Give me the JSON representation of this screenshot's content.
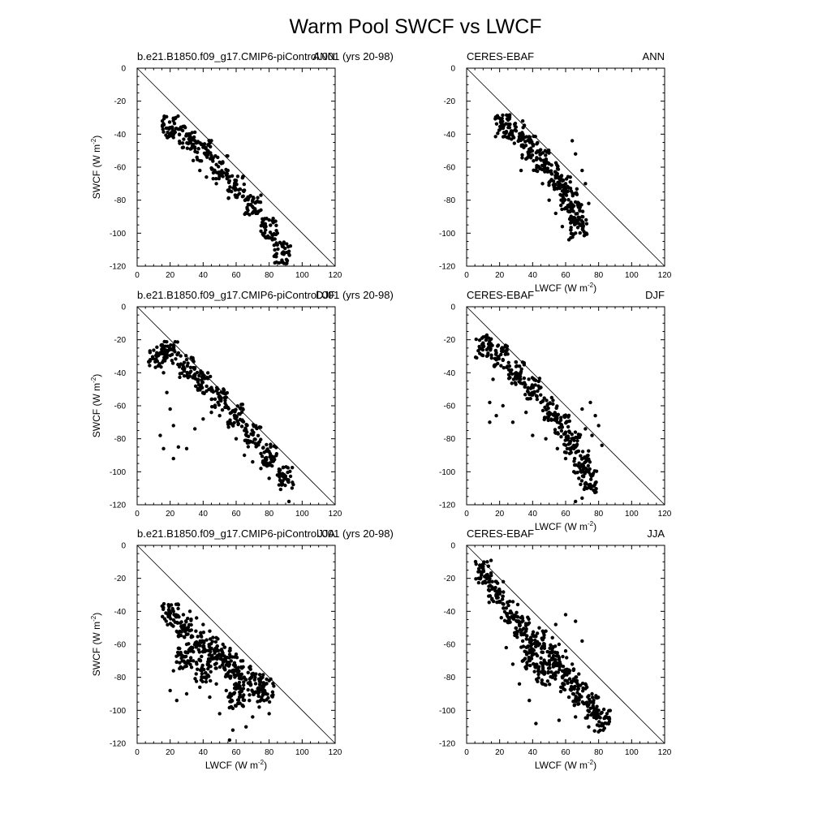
{
  "figure": {
    "title": "Warm Pool SWCF vs LWCF",
    "x_axis_title": "LWCF (W m",
    "y_axis_title": "SWCF (W m",
    "unit_superscript": "-2",
    "unit_close": ")"
  },
  "chart_data": [
    {
      "type": "scatter",
      "left_label": "b.e21.B1850.f09_g17.CMIP6-piControl.001 (yrs 20-98)",
      "right_label": "ANN",
      "xlim": [
        0,
        120
      ],
      "ylim": [
        -120,
        0
      ],
      "xticks": [
        "0",
        "20",
        "40",
        "60",
        "80",
        "100",
        "120"
      ],
      "yticks": [
        "0",
        "-20",
        "-40",
        "-60",
        "-80",
        "-100",
        "-120"
      ],
      "show_xlabel": false,
      "show_ylabel": true,
      "reference_line": {
        "from": [
          0,
          0
        ],
        "to": [
          120,
          -120
        ]
      },
      "cloud": [
        [
          20,
          -36
        ],
        [
          30,
          -42
        ],
        [
          40,
          -50
        ],
        [
          50,
          -60
        ],
        [
          60,
          -72
        ],
        [
          70,
          -84
        ],
        [
          80,
          -98
        ],
        [
          88,
          -112
        ]
      ],
      "points": [
        [
          20,
          -36
        ],
        [
          25,
          -37
        ],
        [
          30,
          -40
        ],
        [
          35,
          -44
        ],
        [
          40,
          -48
        ],
        [
          45,
          -53
        ],
        [
          50,
          -57
        ],
        [
          55,
          -62
        ],
        [
          60,
          -68
        ],
        [
          65,
          -74
        ],
        [
          70,
          -80
        ],
        [
          75,
          -86
        ],
        [
          80,
          -92
        ],
        [
          85,
          -100
        ],
        [
          88,
          -108
        ],
        [
          86,
          -118
        ],
        [
          22,
          -40
        ],
        [
          28,
          -48
        ],
        [
          34,
          -56
        ],
        [
          38,
          -62
        ],
        [
          42,
          -66
        ],
        [
          48,
          -70
        ],
        [
          55,
          -74
        ],
        [
          62,
          -76
        ],
        [
          68,
          -78
        ],
        [
          72,
          -88
        ],
        [
          78,
          -96
        ],
        [
          82,
          -104
        ]
      ]
    },
    {
      "type": "scatter",
      "left_label": "CERES-EBAF",
      "right_label": "ANN",
      "xlim": [
        0,
        120
      ],
      "ylim": [
        -120,
        0
      ],
      "xticks": [
        "0",
        "20",
        "40",
        "60",
        "80",
        "100",
        "120"
      ],
      "yticks": [
        "0",
        "-20",
        "-40",
        "-60",
        "-80",
        "-100",
        "-120"
      ],
      "show_xlabel": true,
      "show_ylabel": false,
      "reference_line": {
        "from": [
          0,
          0
        ],
        "to": [
          120,
          -120
        ]
      },
      "cloud": [
        [
          22,
          -35
        ],
        [
          30,
          -40
        ],
        [
          38,
          -48
        ],
        [
          45,
          -56
        ],
        [
          52,
          -64
        ],
        [
          58,
          -72
        ],
        [
          62,
          -80
        ],
        [
          66,
          -88
        ],
        [
          68,
          -96
        ]
      ],
      "points": [
        [
          22,
          -35
        ],
        [
          26,
          -36
        ],
        [
          30,
          -38
        ],
        [
          34,
          -32
        ],
        [
          35,
          -42
        ],
        [
          40,
          -46
        ],
        [
          45,
          -52
        ],
        [
          50,
          -58
        ],
        [
          55,
          -64
        ],
        [
          60,
          -70
        ],
        [
          65,
          -76
        ],
        [
          68,
          -82
        ],
        [
          70,
          -90
        ],
        [
          66,
          -100
        ],
        [
          62,
          -104
        ],
        [
          58,
          -96
        ],
        [
          54,
          -88
        ],
        [
          50,
          -80
        ],
        [
          46,
          -70
        ],
        [
          42,
          -62
        ],
        [
          33,
          -62
        ],
        [
          36,
          -55
        ],
        [
          64,
          -44
        ],
        [
          66,
          -52
        ],
        [
          70,
          -62
        ],
        [
          72,
          -70
        ],
        [
          74,
          -82
        ]
      ]
    },
    {
      "type": "scatter",
      "left_label": "b.e21.B1850.f09_g17.CMIP6-piControl.001 (yrs 20-98)",
      "right_label": "DJF",
      "xlim": [
        0,
        120
      ],
      "ylim": [
        -120,
        0
      ],
      "xticks": [
        "0",
        "20",
        "40",
        "60",
        "80",
        "100",
        "120"
      ],
      "yticks": [
        "0",
        "-20",
        "-40",
        "-60",
        "-80",
        "-100",
        "-120"
      ],
      "show_xlabel": false,
      "show_ylabel": true,
      "reference_line": {
        "from": [
          0,
          0
        ],
        "to": [
          120,
          -120
        ]
      },
      "cloud": [
        [
          12,
          -30
        ],
        [
          20,
          -28
        ],
        [
          30,
          -36
        ],
        [
          40,
          -46
        ],
        [
          50,
          -56
        ],
        [
          60,
          -66
        ],
        [
          70,
          -78
        ],
        [
          80,
          -90
        ],
        [
          90,
          -104
        ]
      ],
      "points": [
        [
          12,
          -30
        ],
        [
          15,
          -27
        ],
        [
          20,
          -26
        ],
        [
          25,
          -28
        ],
        [
          30,
          -32
        ],
        [
          35,
          -37
        ],
        [
          40,
          -43
        ],
        [
          45,
          -49
        ],
        [
          50,
          -55
        ],
        [
          55,
          -61
        ],
        [
          60,
          -68
        ],
        [
          65,
          -75
        ],
        [
          70,
          -82
        ],
        [
          75,
          -89
        ],
        [
          80,
          -96
        ],
        [
          85,
          -102
        ],
        [
          90,
          -104
        ],
        [
          92,
          -118
        ],
        [
          16,
          -40
        ],
        [
          18,
          -52
        ],
        [
          20,
          -62
        ],
        [
          22,
          -72
        ],
        [
          16,
          -86
        ],
        [
          14,
          -78
        ],
        [
          22,
          -92
        ],
        [
          25,
          -85
        ],
        [
          30,
          -86
        ],
        [
          35,
          -74
        ],
        [
          40,
          -68
        ],
        [
          45,
          -64
        ],
        [
          50,
          -66
        ],
        [
          55,
          -70
        ],
        [
          60,
          -80
        ],
        [
          65,
          -90
        ],
        [
          70,
          -94
        ],
        [
          75,
          -98
        ],
        [
          80,
          -104
        ],
        [
          86,
          -108
        ]
      ]
    },
    {
      "type": "scatter",
      "left_label": "CERES-EBAF",
      "right_label": "DJF",
      "xlim": [
        0,
        120
      ],
      "ylim": [
        -120,
        0
      ],
      "xticks": [
        "0",
        "20",
        "40",
        "60",
        "80",
        "100",
        "120"
      ],
      "yticks": [
        "0",
        "-20",
        "-40",
        "-60",
        "-80",
        "-100",
        "-120"
      ],
      "show_xlabel": true,
      "show_ylabel": false,
      "reference_line": {
        "from": [
          0,
          0
        ],
        "to": [
          120,
          -120
        ]
      },
      "cloud": [
        [
          10,
          -24
        ],
        [
          20,
          -30
        ],
        [
          30,
          -40
        ],
        [
          40,
          -50
        ],
        [
          50,
          -62
        ],
        [
          58,
          -72
        ],
        [
          64,
          -82
        ],
        [
          70,
          -94
        ],
        [
          74,
          -106
        ]
      ],
      "points": [
        [
          10,
          -22
        ],
        [
          14,
          -24
        ],
        [
          18,
          -28
        ],
        [
          22,
          -32
        ],
        [
          26,
          -36
        ],
        [
          30,
          -40
        ],
        [
          35,
          -46
        ],
        [
          40,
          -52
        ],
        [
          45,
          -58
        ],
        [
          50,
          -64
        ],
        [
          55,
          -70
        ],
        [
          60,
          -76
        ],
        [
          65,
          -84
        ],
        [
          70,
          -92
        ],
        [
          72,
          -100
        ],
        [
          74,
          -108
        ],
        [
          70,
          -116
        ],
        [
          66,
          -118
        ],
        [
          16,
          -44
        ],
        [
          14,
          -58
        ],
        [
          14,
          -70
        ],
        [
          18,
          -66
        ],
        [
          22,
          -60
        ],
        [
          28,
          -70
        ],
        [
          36,
          -64
        ],
        [
          40,
          -78
        ],
        [
          48,
          -80
        ],
        [
          55,
          -86
        ],
        [
          60,
          -92
        ],
        [
          65,
          -100
        ],
        [
          68,
          -104
        ],
        [
          70,
          -62
        ],
        [
          75,
          -58
        ],
        [
          78,
          -66
        ],
        [
          80,
          -72
        ],
        [
          82,
          -84
        ],
        [
          76,
          -78
        ],
        [
          72,
          -74
        ]
      ]
    },
    {
      "type": "scatter",
      "left_label": "b.e21.B1850.f09_g17.CMIP6-piControl.001 (yrs 20-98)",
      "right_label": "JJA",
      "xlim": [
        0,
        120
      ],
      "ylim": [
        -120,
        0
      ],
      "xticks": [
        "0",
        "20",
        "40",
        "60",
        "80",
        "100",
        "120"
      ],
      "yticks": [
        "0",
        "-20",
        "-40",
        "-60",
        "-80",
        "-100",
        "-120"
      ],
      "show_xlabel": true,
      "show_ylabel": true,
      "reference_line": {
        "from": [
          0,
          0
        ],
        "to": [
          120,
          -120
        ]
      },
      "cloud": [
        [
          20,
          -42
        ],
        [
          28,
          -50
        ],
        [
          36,
          -58
        ],
        [
          44,
          -62
        ],
        [
          52,
          -68
        ],
        [
          58,
          -74
        ],
        [
          64,
          -80
        ],
        [
          72,
          -84
        ],
        [
          78,
          -88
        ],
        [
          60,
          -92
        ],
        [
          40,
          -76
        ],
        [
          28,
          -68
        ]
      ],
      "points": [
        [
          19,
          -36
        ],
        [
          22,
          -40
        ],
        [
          25,
          -36
        ],
        [
          28,
          -42
        ],
        [
          32,
          -40
        ],
        [
          36,
          -44
        ],
        [
          40,
          -48
        ],
        [
          44,
          -52
        ],
        [
          48,
          -56
        ],
        [
          52,
          -60
        ],
        [
          56,
          -64
        ],
        [
          60,
          -66
        ],
        [
          64,
          -70
        ],
        [
          68,
          -74
        ],
        [
          72,
          -78
        ],
        [
          76,
          -80
        ],
        [
          80,
          -82
        ],
        [
          78,
          -90
        ],
        [
          74,
          -98
        ],
        [
          70,
          -104
        ],
        [
          66,
          -110
        ],
        [
          58,
          -112
        ],
        [
          56,
          -118
        ],
        [
          50,
          -102
        ],
        [
          44,
          -92
        ],
        [
          38,
          -86
        ],
        [
          30,
          -90
        ],
        [
          24,
          -94
        ],
        [
          20,
          -88
        ],
        [
          22,
          -76
        ],
        [
          26,
          -66
        ],
        [
          30,
          -60
        ],
        [
          34,
          -70
        ],
        [
          40,
          -80
        ],
        [
          48,
          -84
        ],
        [
          54,
          -88
        ],
        [
          62,
          -92
        ],
        [
          68,
          -94
        ],
        [
          80,
          -102
        ]
      ]
    },
    {
      "type": "scatter",
      "left_label": "CERES-EBAF",
      "right_label": "JJA",
      "xlim": [
        0,
        120
      ],
      "ylim": [
        -120,
        0
      ],
      "xticks": [
        "0",
        "20",
        "40",
        "60",
        "80",
        "100",
        "120"
      ],
      "yticks": [
        "0",
        "-20",
        "-40",
        "-60",
        "-80",
        "-100",
        "-120"
      ],
      "show_xlabel": true,
      "show_ylabel": false,
      "reference_line": {
        "from": [
          0,
          0
        ],
        "to": [
          120,
          -120
        ]
      },
      "cloud": [
        [
          10,
          -16
        ],
        [
          18,
          -28
        ],
        [
          26,
          -40
        ],
        [
          34,
          -50
        ],
        [
          42,
          -58
        ],
        [
          50,
          -66
        ],
        [
          56,
          -74
        ],
        [
          62,
          -82
        ],
        [
          68,
          -90
        ],
        [
          76,
          -98
        ],
        [
          82,
          -106
        ],
        [
          38,
          -68
        ],
        [
          46,
          -78
        ]
      ],
      "points": [
        [
          8,
          -12
        ],
        [
          10,
          -14
        ],
        [
          12,
          -18
        ],
        [
          14,
          -22
        ],
        [
          16,
          -26
        ],
        [
          18,
          -30
        ],
        [
          20,
          -34
        ],
        [
          24,
          -38
        ],
        [
          28,
          -44
        ],
        [
          32,
          -48
        ],
        [
          36,
          -52
        ],
        [
          40,
          -54
        ],
        [
          44,
          -50
        ],
        [
          48,
          -52
        ],
        [
          52,
          -56
        ],
        [
          56,
          -60
        ],
        [
          60,
          -64
        ],
        [
          64,
          -72
        ],
        [
          68,
          -78
        ],
        [
          72,
          -84
        ],
        [
          76,
          -90
        ],
        [
          80,
          -100
        ],
        [
          82,
          -108
        ],
        [
          74,
          -110
        ],
        [
          66,
          -104
        ],
        [
          56,
          -106
        ],
        [
          42,
          -108
        ],
        [
          38,
          -94
        ],
        [
          32,
          -84
        ],
        [
          28,
          -72
        ],
        [
          24,
          -62
        ],
        [
          34,
          -58
        ],
        [
          40,
          -66
        ],
        [
          46,
          -72
        ],
        [
          52,
          -80
        ],
        [
          58,
          -86
        ],
        [
          62,
          -92
        ],
        [
          68,
          -96
        ],
        [
          70,
          -58
        ],
        [
          66,
          -46
        ],
        [
          60,
          -42
        ],
        [
          54,
          -48
        ]
      ]
    }
  ]
}
